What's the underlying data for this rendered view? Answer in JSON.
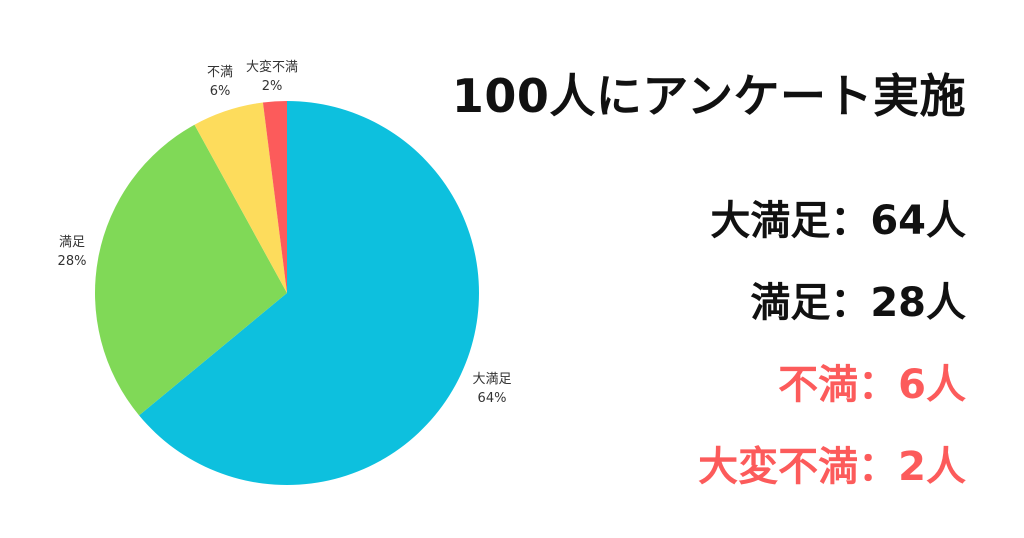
{
  "title": "100人にアンケート実施",
  "chart_data": {
    "type": "pie",
    "title": "",
    "slices": [
      {
        "label": "大満足",
        "value": 64,
        "percent_label": "64%",
        "color": "#0dc0de"
      },
      {
        "label": "満足",
        "value": 28,
        "percent_label": "28%",
        "color": "#80d957"
      },
      {
        "label": "不満",
        "value": 6,
        "percent_label": "6%",
        "color": "#fddc5c"
      },
      {
        "label": "大変不満",
        "value": 2,
        "percent_label": "2%",
        "color": "#fc5b5b"
      }
    ],
    "start_angle_deg": 0,
    "direction": "clockwise"
  },
  "summary": [
    {
      "text": "大満足：64人",
      "color": "#111111"
    },
    {
      "text": "満足：28人",
      "color": "#111111"
    },
    {
      "text": "不満：6人",
      "color": "#fc5b5b"
    },
    {
      "text": "大変不満：2人",
      "color": "#fc5b5b"
    }
  ]
}
